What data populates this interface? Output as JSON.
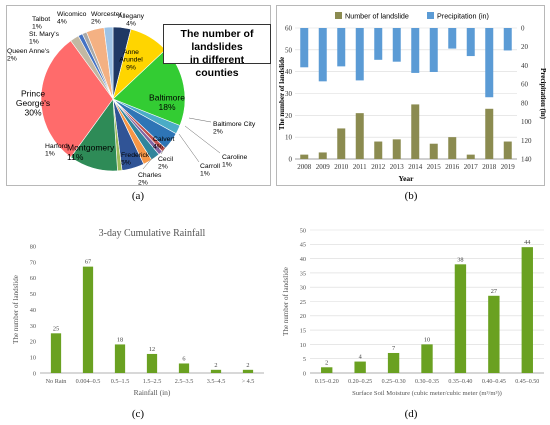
{
  "captions": {
    "a": "(a)",
    "b": "(b)",
    "c": "(c)",
    "d": "(d)"
  },
  "chart_data": [
    {
      "id": "a",
      "type": "pie",
      "title": "The number of landslides in different counties",
      "title_lines": [
        "The number of landslides",
        "in different counties"
      ],
      "slices": [
        {
          "label": "Allegany",
          "value": 4,
          "color": "#1f3864"
        },
        {
          "label": "Anne Arundel",
          "value": 9,
          "color": "#ffd500"
        },
        {
          "label": "Baltimore",
          "value": 18,
          "color": "#33cc33"
        },
        {
          "label": "Baltimore City",
          "value": 2,
          "color": "#4bacc6"
        },
        {
          "label": "Calvert",
          "value": 4,
          "color": "#2e75b6"
        },
        {
          "label": "Caroline",
          "value": 1,
          "color": "#c0504d"
        },
        {
          "label": "Carroll",
          "value": 1,
          "color": "#8064a2"
        },
        {
          "label": "Cecil",
          "value": 2,
          "color": "#31859c"
        },
        {
          "label": "Charles",
          "value": 2,
          "color": "#f79646"
        },
        {
          "label": "Frederick",
          "value": 5,
          "color": "#305496"
        },
        {
          "label": "Harford",
          "value": 1,
          "color": "#9bbb59"
        },
        {
          "label": "Montgomery",
          "value": 11,
          "color": "#2e8b57"
        },
        {
          "label": "Prince George's",
          "value": 30,
          "color": "#ff6b6b"
        },
        {
          "label": "Queen Anne's",
          "value": 2,
          "color": "#c2b8a3"
        },
        {
          "label": "St. Mary's",
          "value": 1,
          "color": "#4472c4"
        },
        {
          "label": "Talbot",
          "value": 1,
          "color": "#a9a9a9"
        },
        {
          "label": "Wicomico",
          "value": 4,
          "color": "#f4b183"
        },
        {
          "label": "Worcester",
          "value": 2,
          "color": "#9dc3e6"
        }
      ],
      "labels": [
        {
          "line1": "Allegany",
          "line2": "4%"
        },
        {
          "line1": "Anne",
          "line2": "Arundel",
          "line3": "9%"
        },
        {
          "line1": "Baltimore",
          "line2": "18%"
        },
        {
          "line1": "Baltimore City",
          "line2": "2%"
        },
        {
          "line1": "Calvert",
          "line2": "4%"
        },
        {
          "line1": "Caroline",
          "line2": "1%"
        },
        {
          "line1": "Carroll",
          "line2": "1%"
        },
        {
          "line1": "Cecil",
          "line2": "2%"
        },
        {
          "line1": "Charles",
          "line2": "2%"
        },
        {
          "line1": "Frederick",
          "line2": "5%"
        },
        {
          "line1": "Harford",
          "line2": "1%"
        },
        {
          "line1": "Montgomery",
          "line2": "11%"
        },
        {
          "line1": "Prince",
          "line2": "George's",
          "line3": "30%"
        },
        {
          "line1": "Queen Anne's",
          "line2": "2%"
        },
        {
          "line1": "St. Mary's",
          "line2": "1%"
        },
        {
          "line1": "Talbot",
          "line2": "1%"
        },
        {
          "line1": "Wicomico",
          "line2": "4%"
        },
        {
          "line1": "Worcester",
          "line2": "2%"
        }
      ]
    },
    {
      "id": "b",
      "type": "bar",
      "categories": [
        "2008",
        "2009",
        "2010",
        "2011",
        "2012",
        "2013",
        "2014",
        "2015",
        "2016",
        "2017",
        "2018",
        "2019"
      ],
      "series": [
        {
          "name": "Number of landslide",
          "values": [
            2,
            3,
            14,
            21,
            8,
            9,
            25,
            7,
            10,
            2,
            23,
            8
          ],
          "color": "#8b8b50"
        },
        {
          "name": "Precipitation (in)",
          "values": [
            42,
            57,
            41,
            56,
            34,
            36,
            48,
            47,
            22,
            30,
            74,
            24
          ],
          "color": "#5b9bd5"
        }
      ],
      "xlabel": "Year",
      "ylabel": "The number of landslide",
      "ylabel_right": "Precipitation (in)",
      "ylim": [
        0,
        60
      ],
      "yticks": [
        0,
        10,
        20,
        30,
        40,
        50,
        60
      ],
      "ylim_right": [
        140,
        0
      ],
      "yticks_right": [
        0,
        20,
        40,
        60,
        80,
        100,
        120,
        140
      ],
      "grid": true,
      "legend": "top"
    },
    {
      "id": "c",
      "type": "bar",
      "title": "3-day Cumulative Rainfall",
      "categories": [
        "No Rain",
        "0.004–0.5",
        "0.5–1.5",
        "1.5–2.5",
        "2.5–3.5",
        "3.5–4.5",
        "> 4.5"
      ],
      "values": [
        25,
        67,
        18,
        12,
        6,
        2,
        2
      ],
      "color": "#6aa121",
      "xlabel": "Rainfall (in)",
      "ylabel": "The number of landslide",
      "ylim": [
        0,
        80
      ],
      "yticks": [
        0,
        10,
        20,
        30,
        40,
        50,
        60,
        70,
        80
      ],
      "grid": false
    },
    {
      "id": "d",
      "type": "bar",
      "categories": [
        "0.15–0.20",
        "0.20–0.25",
        "0.25–0.30",
        "0.30–0.35",
        "0.35–0.40",
        "0.40–0.45",
        "0.45–0.50"
      ],
      "values": [
        2,
        4,
        7,
        10,
        38,
        27,
        44
      ],
      "color": "#6aa121",
      "xlabel": "Surface Soil Moisture (cubic meter/cubic meter (m³/m³))",
      "ylabel": "The number of landslide",
      "ylim": [
        0,
        50
      ],
      "yticks": [
        0,
        5,
        10,
        15,
        20,
        25,
        30,
        35,
        40,
        45,
        50
      ],
      "grid": true
    }
  ]
}
